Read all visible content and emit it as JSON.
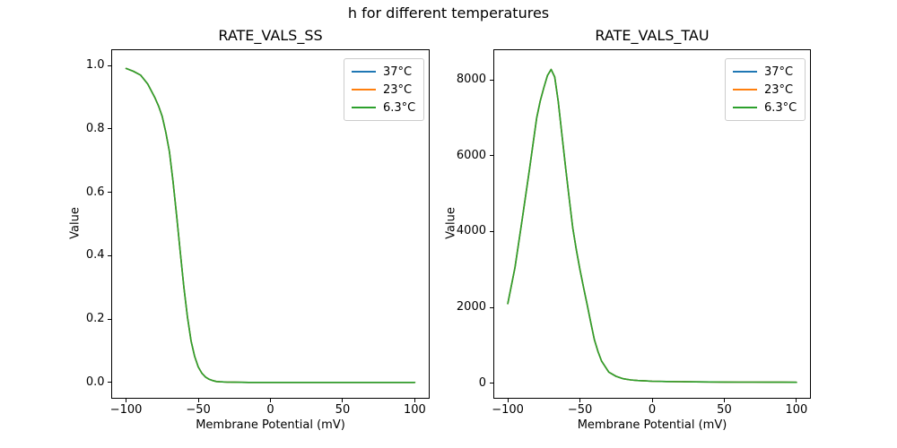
{
  "figure": {
    "suptitle": "h for different temperatures",
    "background": "#ffffff"
  },
  "chart_data": [
    {
      "type": "line",
      "title": "RATE_VALS_SS",
      "xlabel": "Membrane Potential (mV)",
      "ylabel": "Value",
      "xlim": [
        -110,
        110
      ],
      "ylim": [
        -0.05,
        1.05
      ],
      "xticks": [
        -100,
        -50,
        0,
        50,
        100
      ],
      "xtick_labels": [
        "−100",
        "−50",
        "0",
        "50",
        "100"
      ],
      "yticks": [
        0.0,
        0.2,
        0.4,
        0.6,
        0.8,
        1.0
      ],
      "ytick_labels": [
        "0.0",
        "0.2",
        "0.4",
        "0.6",
        "0.8",
        "1.0"
      ],
      "grid": false,
      "legend_position": "upper right",
      "note": "all three temperature curves coincide; only the last-drawn green (6.3°C) line is visible",
      "x": [
        -100,
        -95,
        -90,
        -85,
        -80,
        -77.5,
        -75,
        -72.5,
        -70,
        -67.5,
        -65,
        -62.5,
        -60,
        -57.5,
        -55,
        -52.5,
        -50,
        -47.5,
        -45,
        -42.5,
        -40,
        -37.5,
        -35,
        -30,
        -25,
        -20,
        -15,
        -10,
        -5,
        0,
        10,
        20,
        30,
        40,
        50,
        60,
        70,
        80,
        90,
        100
      ],
      "series": [
        {
          "name": "37°C",
          "color": "#1f77b4",
          "values": [
            0.991,
            0.982,
            0.97,
            0.942,
            0.898,
            0.872,
            0.84,
            0.79,
            0.728,
            0.634,
            0.527,
            0.413,
            0.3,
            0.206,
            0.131,
            0.082,
            0.049,
            0.029,
            0.017,
            0.01,
            0.006,
            0.003,
            0.002,
            0.001,
            0.0005,
            0.0002,
            0.0001,
            0,
            0,
            0,
            0,
            0,
            0,
            0,
            0,
            0,
            0,
            0,
            0,
            0
          ]
        },
        {
          "name": "23°C",
          "color": "#ff7f0e",
          "values": [
            0.991,
            0.982,
            0.97,
            0.942,
            0.898,
            0.872,
            0.84,
            0.79,
            0.728,
            0.634,
            0.527,
            0.413,
            0.3,
            0.206,
            0.131,
            0.082,
            0.049,
            0.029,
            0.017,
            0.01,
            0.006,
            0.003,
            0.002,
            0.001,
            0.0005,
            0.0002,
            0.0001,
            0,
            0,
            0,
            0,
            0,
            0,
            0,
            0,
            0,
            0,
            0,
            0,
            0
          ]
        },
        {
          "name": "6.3°C",
          "color": "#2ca02c",
          "values": [
            0.991,
            0.982,
            0.97,
            0.942,
            0.898,
            0.872,
            0.84,
            0.79,
            0.728,
            0.634,
            0.527,
            0.413,
            0.3,
            0.206,
            0.131,
            0.082,
            0.049,
            0.029,
            0.017,
            0.01,
            0.006,
            0.003,
            0.002,
            0.001,
            0.0005,
            0.0002,
            0.0001,
            0,
            0,
            0,
            0,
            0,
            0,
            0,
            0,
            0,
            0,
            0,
            0,
            0
          ]
        }
      ]
    },
    {
      "type": "line",
      "title": "RATE_VALS_TAU",
      "xlabel": "Membrane Potential (mV)",
      "ylabel": "Value",
      "xlim": [
        -110,
        110
      ],
      "ylim": [
        -400,
        8800
      ],
      "xticks": [
        -100,
        -50,
        0,
        50,
        100
      ],
      "xtick_labels": [
        "−100",
        "−50",
        "0",
        "50",
        "100"
      ],
      "yticks": [
        0,
        2000,
        4000,
        6000,
        8000
      ],
      "ytick_labels": [
        "0",
        "2000",
        "4000",
        "6000",
        "8000"
      ],
      "grid": false,
      "legend_position": "upper right",
      "note": "all three temperature curves coincide; peak ≈ 8280 at −70 mV; only the green (6.3°C) line is visible",
      "x": [
        -100,
        -95,
        -90,
        -85,
        -80,
        -77.5,
        -75,
        -72.5,
        -70,
        -67.5,
        -65,
        -62.5,
        -60,
        -57.5,
        -55,
        -52.5,
        -50,
        -47.5,
        -45,
        -42.5,
        -40,
        -37.5,
        -35,
        -30,
        -25,
        -20,
        -15,
        -10,
        -5,
        0,
        10,
        20,
        30,
        40,
        50,
        60,
        70,
        80,
        90,
        100
      ],
      "series": [
        {
          "name": "37°C",
          "color": "#1f77b4",
          "values": [
            2100,
            3050,
            4330,
            5630,
            7000,
            7450,
            7800,
            8120,
            8280,
            8080,
            7420,
            6570,
            5700,
            4890,
            4100,
            3520,
            3000,
            2520,
            2070,
            1600,
            1150,
            830,
            580,
            290,
            180,
            115,
            85,
            68,
            58,
            50,
            42,
            37,
            33,
            30,
            28,
            26,
            25,
            24,
            23,
            22
          ]
        },
        {
          "name": "23°C",
          "color": "#ff7f0e",
          "values": [
            2100,
            3050,
            4330,
            5630,
            7000,
            7450,
            7800,
            8120,
            8280,
            8080,
            7420,
            6570,
            5700,
            4890,
            4100,
            3520,
            3000,
            2520,
            2070,
            1600,
            1150,
            830,
            580,
            290,
            180,
            115,
            85,
            68,
            58,
            50,
            42,
            37,
            33,
            30,
            28,
            26,
            25,
            24,
            23,
            22
          ]
        },
        {
          "name": "6.3°C",
          "color": "#2ca02c",
          "values": [
            2100,
            3050,
            4330,
            5630,
            7000,
            7450,
            7800,
            8120,
            8280,
            8080,
            7420,
            6570,
            5700,
            4890,
            4100,
            3520,
            3000,
            2520,
            2070,
            1600,
            1150,
            830,
            580,
            290,
            180,
            115,
            85,
            68,
            58,
            50,
            42,
            37,
            33,
            30,
            28,
            26,
            25,
            24,
            23,
            22
          ]
        }
      ]
    }
  ]
}
